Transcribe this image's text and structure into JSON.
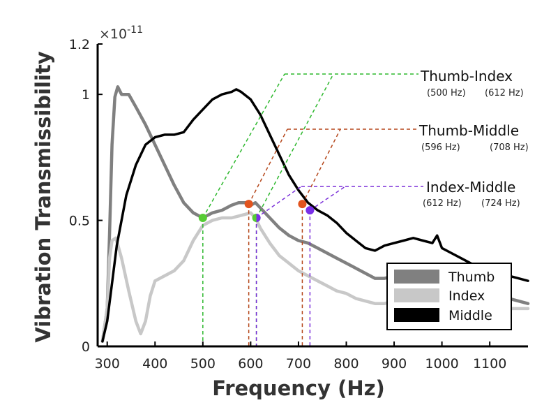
{
  "chart_data": {
    "type": "line",
    "title": "",
    "xlabel": "Frequency (Hz)",
    "ylabel": "Vibration Transmissibility",
    "y_exponent_label": "×10",
    "y_exponent_power": "-11",
    "xlim": [
      280,
      1180
    ],
    "ylim": [
      0,
      1.2
    ],
    "xticks": [
      300,
      400,
      500,
      600,
      700,
      800,
      900,
      1000,
      1100
    ],
    "xtick_labels": [
      "300",
      "400",
      "500",
      "600",
      "700",
      "800",
      "900",
      "1000",
      "1100"
    ],
    "yticks": [
      0,
      0.5,
      1,
      1.2
    ],
    "ytick_labels": [
      "0",
      "0.5",
      "1",
      "1.2"
    ],
    "grid": false,
    "legend_position": "bottom-right",
    "series": [
      {
        "name": "Thumb",
        "color": "#808080",
        "points": [
          [
            290,
            0.02
          ],
          [
            300,
            0.15
          ],
          [
            305,
            0.45
          ],
          [
            310,
            0.8
          ],
          [
            316,
            0.99
          ],
          [
            322,
            1.03
          ],
          [
            330,
            1.0
          ],
          [
            345,
            1.0
          ],
          [
            360,
            0.95
          ],
          [
            380,
            0.88
          ],
          [
            400,
            0.8
          ],
          [
            420,
            0.72
          ],
          [
            440,
            0.64
          ],
          [
            460,
            0.57
          ],
          [
            480,
            0.53
          ],
          [
            500,
            0.51
          ],
          [
            520,
            0.53
          ],
          [
            540,
            0.54
          ],
          [
            560,
            0.56
          ],
          [
            575,
            0.57
          ],
          [
            590,
            0.57
          ],
          [
            600,
            0.56
          ],
          [
            610,
            0.57
          ],
          [
            620,
            0.55
          ],
          [
            640,
            0.51
          ],
          [
            660,
            0.47
          ],
          [
            680,
            0.44
          ],
          [
            700,
            0.42
          ],
          [
            720,
            0.41
          ],
          [
            740,
            0.39
          ],
          [
            760,
            0.37
          ],
          [
            780,
            0.35
          ],
          [
            800,
            0.33
          ],
          [
            820,
            0.31
          ],
          [
            840,
            0.29
          ],
          [
            860,
            0.27
          ],
          [
            880,
            0.27
          ],
          [
            900,
            0.28
          ],
          [
            920,
            0.29
          ],
          [
            940,
            0.3
          ],
          [
            960,
            0.3
          ],
          [
            980,
            0.3
          ],
          [
            1000,
            0.29
          ],
          [
            1020,
            0.27
          ],
          [
            1040,
            0.25
          ],
          [
            1060,
            0.23
          ],
          [
            1080,
            0.22
          ],
          [
            1100,
            0.21
          ],
          [
            1120,
            0.2
          ],
          [
            1140,
            0.19
          ],
          [
            1160,
            0.18
          ],
          [
            1180,
            0.17
          ]
        ]
      },
      {
        "name": "Index",
        "color": "#c8c8c8",
        "points": [
          [
            290,
            0.02
          ],
          [
            300,
            0.15
          ],
          [
            305,
            0.35
          ],
          [
            310,
            0.42
          ],
          [
            318,
            0.43
          ],
          [
            330,
            0.35
          ],
          [
            345,
            0.22
          ],
          [
            360,
            0.1
          ],
          [
            370,
            0.05
          ],
          [
            380,
            0.1
          ],
          [
            390,
            0.2
          ],
          [
            400,
            0.26
          ],
          [
            420,
            0.28
          ],
          [
            440,
            0.3
          ],
          [
            460,
            0.34
          ],
          [
            480,
            0.42
          ],
          [
            500,
            0.48
          ],
          [
            520,
            0.5
          ],
          [
            540,
            0.51
          ],
          [
            560,
            0.51
          ],
          [
            580,
            0.52
          ],
          [
            600,
            0.53
          ],
          [
            610,
            0.51
          ],
          [
            620,
            0.47
          ],
          [
            640,
            0.41
          ],
          [
            660,
            0.36
          ],
          [
            680,
            0.33
          ],
          [
            700,
            0.3
          ],
          [
            720,
            0.28
          ],
          [
            740,
            0.26
          ],
          [
            760,
            0.24
          ],
          [
            780,
            0.22
          ],
          [
            800,
            0.21
          ],
          [
            820,
            0.19
          ],
          [
            840,
            0.18
          ],
          [
            860,
            0.17
          ],
          [
            880,
            0.17
          ],
          [
            900,
            0.18
          ],
          [
            920,
            0.19
          ],
          [
            940,
            0.2
          ],
          [
            960,
            0.21
          ],
          [
            980,
            0.21
          ],
          [
            1000,
            0.21
          ],
          [
            1020,
            0.2
          ],
          [
            1040,
            0.19
          ],
          [
            1060,
            0.18
          ],
          [
            1080,
            0.17
          ],
          [
            1100,
            0.16
          ],
          [
            1120,
            0.16
          ],
          [
            1140,
            0.15
          ],
          [
            1160,
            0.15
          ],
          [
            1180,
            0.15
          ]
        ]
      },
      {
        "name": "Middle",
        "color": "#000000",
        "points": [
          [
            290,
            0.02
          ],
          [
            300,
            0.1
          ],
          [
            310,
            0.25
          ],
          [
            320,
            0.4
          ],
          [
            340,
            0.6
          ],
          [
            360,
            0.72
          ],
          [
            380,
            0.8
          ],
          [
            400,
            0.83
          ],
          [
            420,
            0.84
          ],
          [
            440,
            0.84
          ],
          [
            460,
            0.85
          ],
          [
            480,
            0.9
          ],
          [
            500,
            0.94
          ],
          [
            520,
            0.98
          ],
          [
            540,
            1.0
          ],
          [
            560,
            1.01
          ],
          [
            570,
            1.02
          ],
          [
            580,
            1.01
          ],
          [
            600,
            0.98
          ],
          [
            620,
            0.92
          ],
          [
            640,
            0.84
          ],
          [
            660,
            0.76
          ],
          [
            680,
            0.68
          ],
          [
            700,
            0.62
          ],
          [
            720,
            0.57
          ],
          [
            740,
            0.54
          ],
          [
            760,
            0.52
          ],
          [
            780,
            0.49
          ],
          [
            800,
            0.45
          ],
          [
            820,
            0.42
          ],
          [
            840,
            0.39
          ],
          [
            860,
            0.38
          ],
          [
            880,
            0.4
          ],
          [
            900,
            0.41
          ],
          [
            920,
            0.42
          ],
          [
            940,
            0.43
          ],
          [
            960,
            0.42
          ],
          [
            980,
            0.41
          ],
          [
            990,
            0.44
          ],
          [
            1000,
            0.39
          ],
          [
            1020,
            0.37
          ],
          [
            1040,
            0.35
          ],
          [
            1060,
            0.33
          ],
          [
            1080,
            0.31
          ],
          [
            1100,
            0.3
          ],
          [
            1120,
            0.29
          ],
          [
            1140,
            0.28
          ],
          [
            1160,
            0.27
          ],
          [
            1180,
            0.26
          ]
        ]
      }
    ],
    "annotations": [
      {
        "title": "Thumb-Index",
        "sub1": "(500 Hz)",
        "sub2": "(612 Hz)",
        "color": "#2db82d",
        "x1": 500,
        "x2": 612,
        "y1": 0.51,
        "y2": 0.51
      },
      {
        "title": "Thumb-Middle",
        "sub1": "(596 Hz)",
        "sub2": "(708 Hz)",
        "color": "#b5471b",
        "x1": 596,
        "x2": 708,
        "y1": 0.565,
        "y2": 0.565
      },
      {
        "title": "Index-Middle",
        "sub1": "(612 Hz)",
        "sub2": "(724 Hz)",
        "color": "#7a2fd9",
        "x1": 612,
        "x2": 724,
        "y1": 0.51,
        "y2": 0.54
      }
    ],
    "marker_colors": {
      "green": "#55cc33",
      "orange": "#e2541e",
      "purple": "#7a2fe8"
    }
  }
}
